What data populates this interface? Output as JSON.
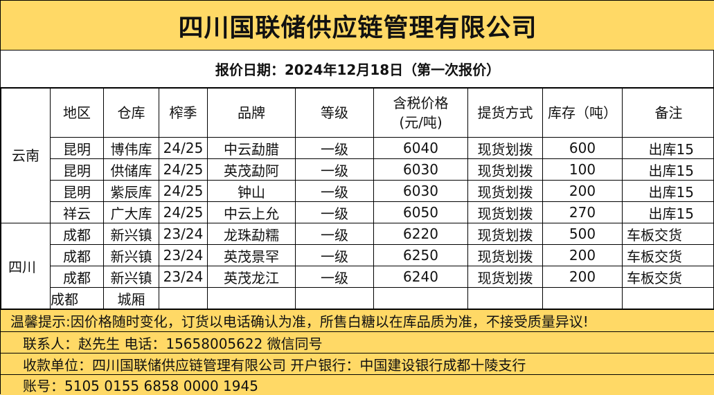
{
  "title": "四川国联储供应链管理有限公司",
  "date_line": "报价日期：2024年12月18日（第一次报价）",
  "headers": [
    "地区",
    "仓库",
    "榨季",
    "品牌",
    "等级",
    "含税价格\n(元/吨)",
    "提货方式",
    "库存（吨）",
    "备注"
  ],
  "header_price_1": "含税价格",
  "header_price_2": "(元/吨)",
  "groups": [
    {
      "region": "云南"
    },
    {
      "region": "四川"
    }
  ],
  "rows": [
    [
      "昆明",
      "博伟库",
      "24/25",
      "中云勐腊",
      "一级",
      "6040",
      "现货划拨",
      "600",
      "出库15"
    ],
    [
      "昆明",
      "供储库",
      "24/25",
      "英茂勐阿",
      "一级",
      "6030",
      "现货划拨",
      "100",
      "出库15"
    ],
    [
      "昆明",
      "紫辰库",
      "24/25",
      "钟山",
      "一级",
      "6030",
      "现货划拨",
      "200",
      "出库15"
    ],
    [
      "祥云",
      "广大库",
      "24/25",
      "中云上允",
      "一级",
      "6050",
      "现货划拨",
      "270",
      "出库15"
    ],
    [
      "成都",
      "新兴镇",
      "23/24",
      "龙珠勐糯",
      "一级",
      "6220",
      "现货划拨",
      "500",
      "车板交货"
    ],
    [
      "成都",
      "新兴镇",
      "23/24",
      "英茂景罕",
      "一级",
      "6250",
      "现货划拨",
      "200",
      "车板交货"
    ],
    [
      "成都",
      "新兴镇",
      "23/24",
      "英茂龙江",
      "一级",
      "6240",
      "现货划拨",
      "200",
      "车板交货"
    ],
    [
      "成都",
      "城厢",
      "",
      "",
      "",
      "",
      "",
      "",
      ""
    ]
  ],
  "footer": {
    "notice": "温馨提示:因价格随时变化，订货以电话确认为准，所售白糖以在库品质为准，不接受质量异议!",
    "contact": "联系人：赵先生  电话：15658005622  微信同号",
    "payee": "收款单位：四川国联储供应链管理有限公司  开户银行：中国建设银行成都十陵支行",
    "account": "账号：5105 0155 6858 0000 1945"
  },
  "colors": {
    "header_fill": "#FFD966"
  }
}
